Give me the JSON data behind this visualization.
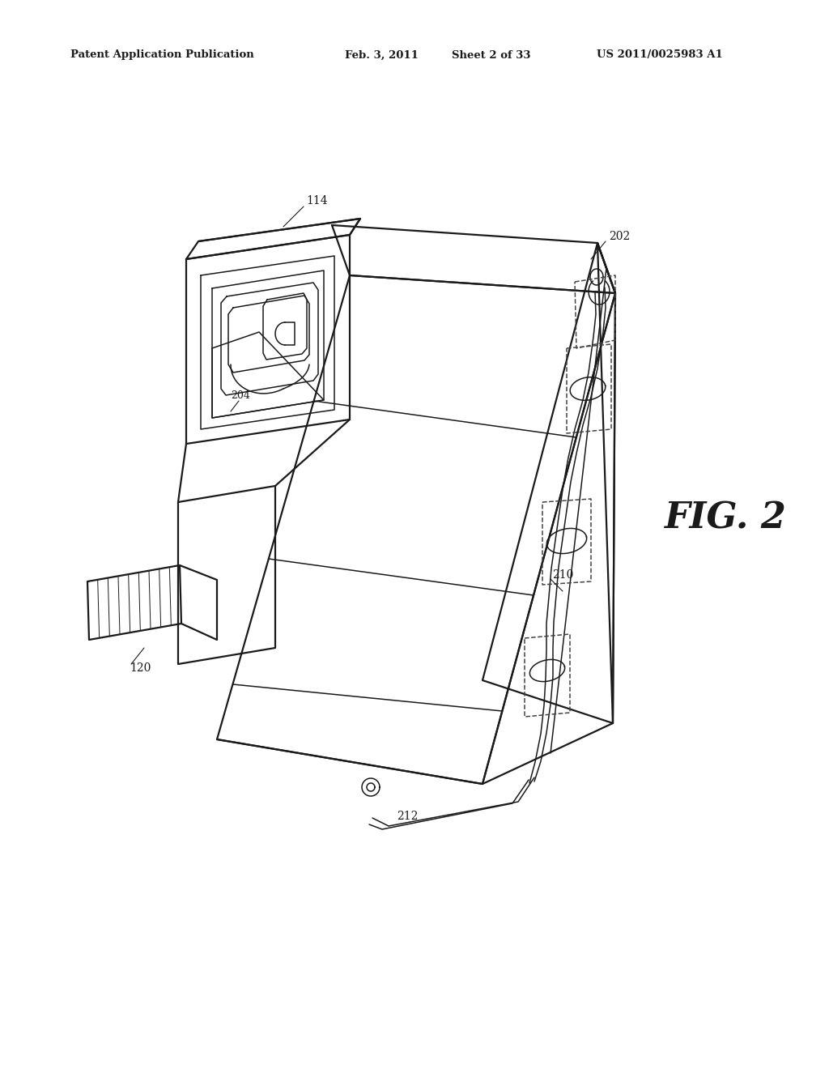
{
  "bg_color": "#ffffff",
  "line_color": "#1a1a1a",
  "header_text": "Patent Application Publication",
  "header_date": "Feb. 3, 2011",
  "header_sheet": "Sheet 2 of 33",
  "header_patent": "US 2011/0025983 A1",
  "fig_label": "FIG. 2",
  "lw_main": 1.6,
  "lw_thin": 1.1,
  "lw_hair": 0.8
}
